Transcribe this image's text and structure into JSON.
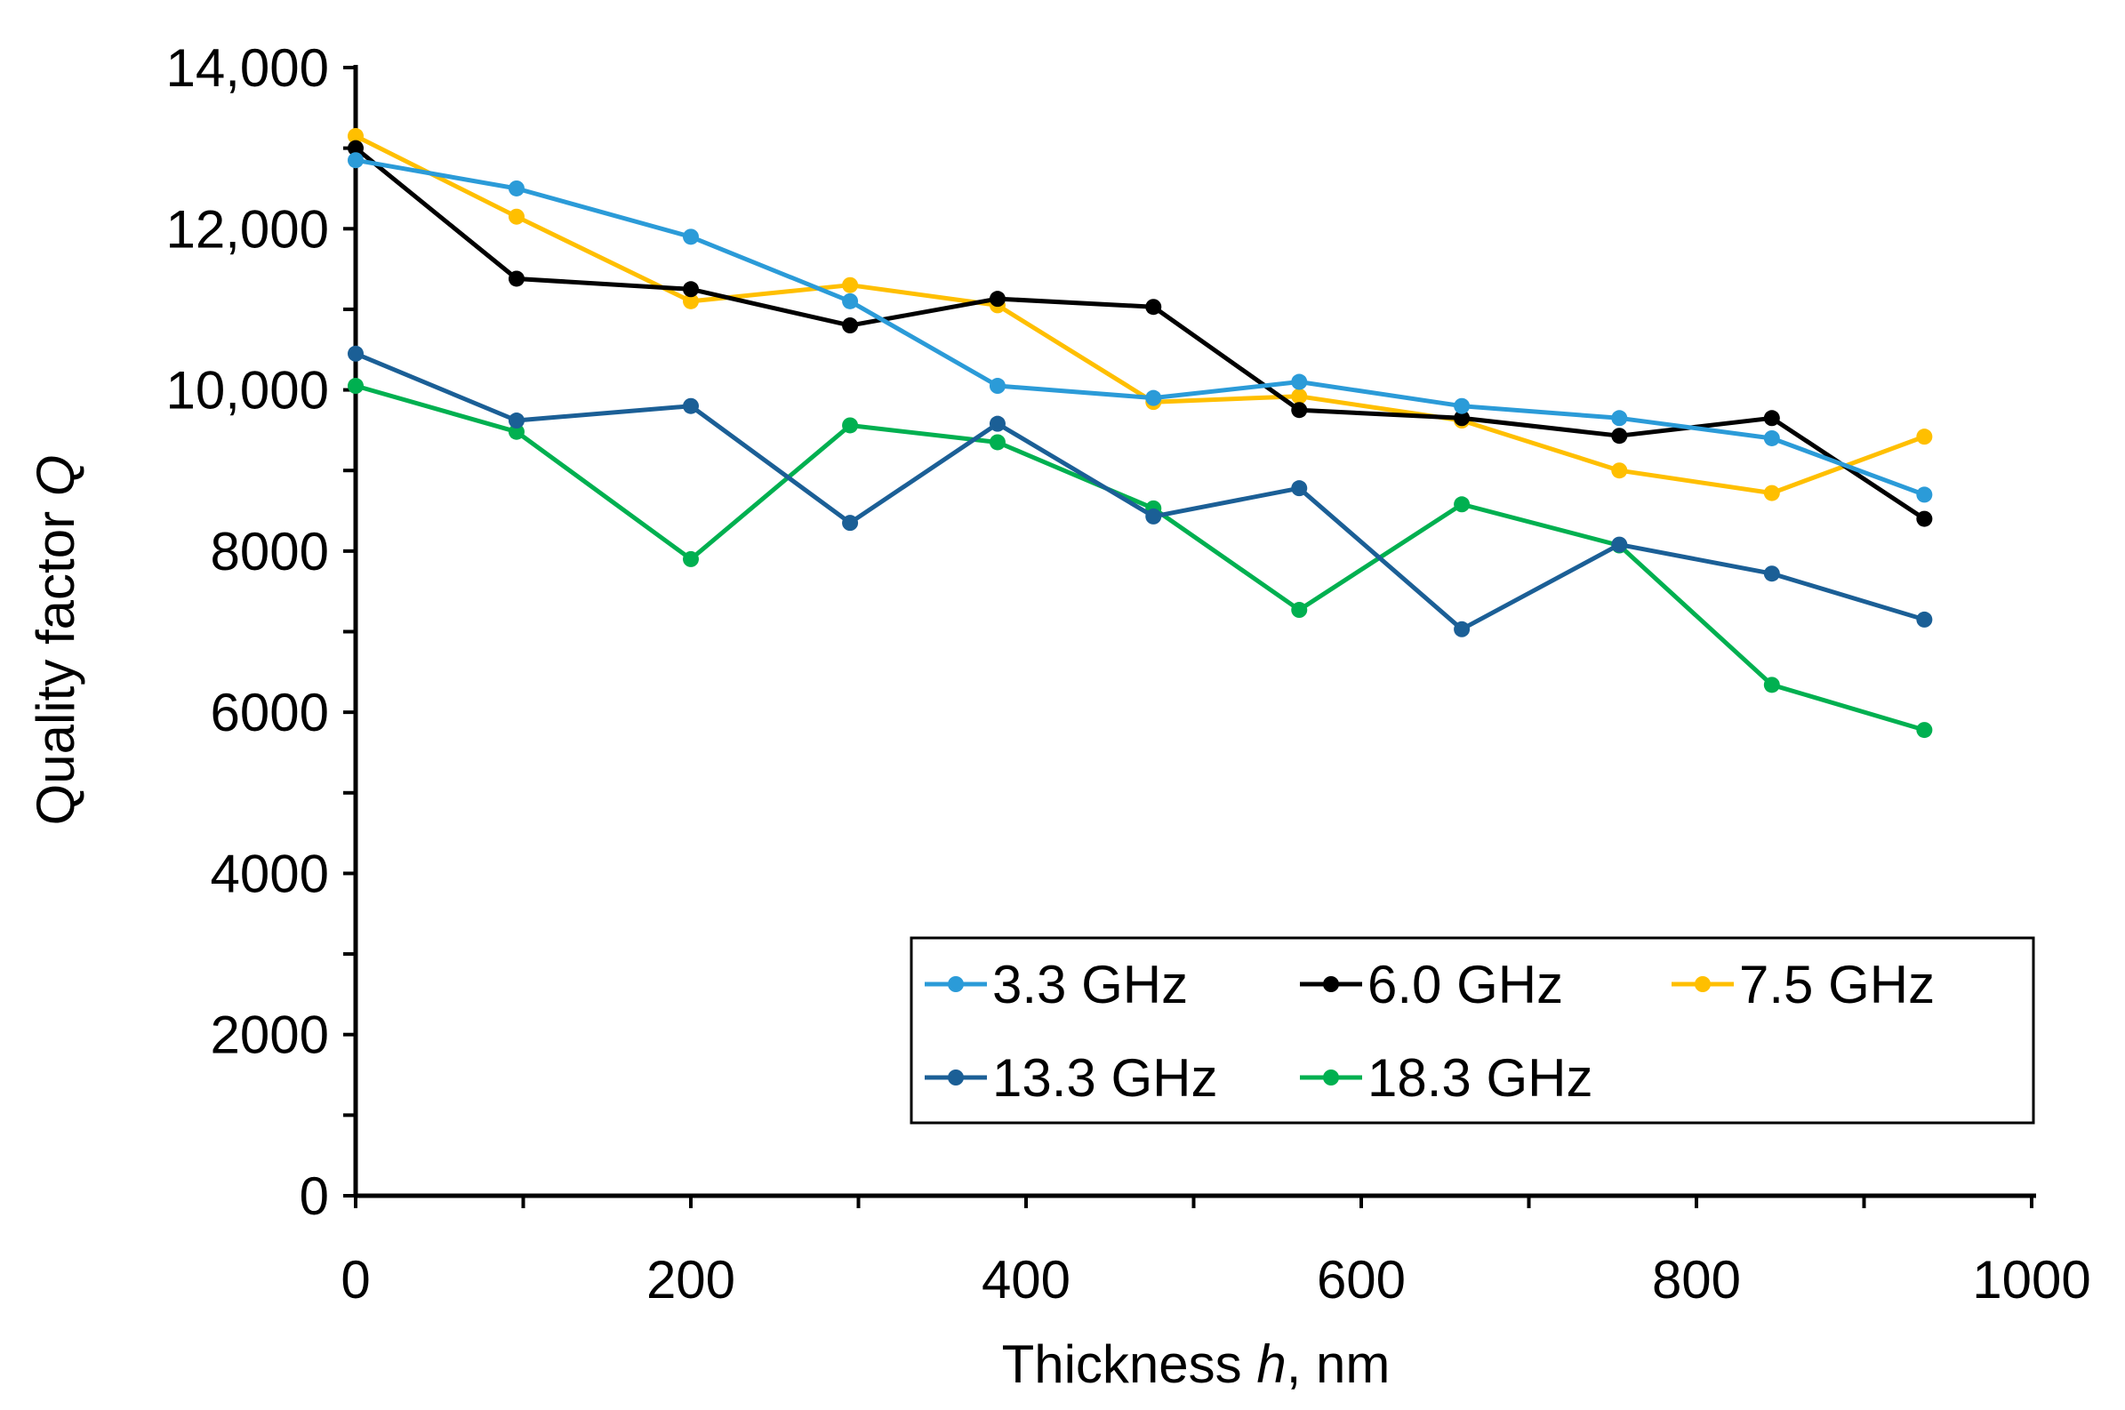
{
  "chart_data": {
    "type": "line",
    "title": "",
    "xlabel_main": "Thickness ",
    "xlabel_var": "h",
    "xlabel_unit": ", nm",
    "ylabel_main": "Quality factor ",
    "ylabel_var": "Q",
    "xlim": [
      0,
      1000
    ],
    "ylim": [
      0,
      14000
    ],
    "x_ticks": [
      0,
      200,
      400,
      600,
      800,
      1000
    ],
    "x_tick_labels": [
      "0",
      "200",
      "400",
      "600",
      "800",
      "1000"
    ],
    "y_ticks": [
      0,
      2000,
      4000,
      6000,
      8000,
      10000,
      12000,
      14000
    ],
    "y_tick_labels": [
      "0",
      "2000",
      "4000",
      "6000",
      "8000",
      "10,000",
      "12,000",
      "14,000"
    ],
    "grid": false,
    "legend_position": "bottom-right",
    "x": [
      0,
      96,
      200,
      295,
      383,
      476,
      563,
      660,
      754,
      845,
      936
    ],
    "series": [
      {
        "name": "3.3 GHz",
        "color": "#2B9BD8",
        "values": [
          12850,
          12500,
          11900,
          11100,
          10050,
          9900,
          10100,
          9800,
          9650,
          9400,
          8700
        ]
      },
      {
        "name": "6.0 GHz",
        "color": "#000000",
        "values": [
          13000,
          11380,
          11250,
          10800,
          11130,
          11030,
          9750,
          9650,
          9430,
          9650,
          8400
        ]
      },
      {
        "name": "7.5 GHz",
        "color": "#FFBF00",
        "values": [
          13150,
          12150,
          11100,
          11300,
          11050,
          9850,
          9920,
          9620,
          9000,
          8720,
          9420
        ]
      },
      {
        "name": "13.3 GHz",
        "color": "#1B5F96",
        "values": [
          10450,
          9620,
          9800,
          8350,
          9580,
          8430,
          8780,
          7030,
          8080,
          7720,
          7150
        ]
      },
      {
        "name": "18.3 GHz",
        "color": "#00B050",
        "values": [
          10050,
          9480,
          7900,
          9560,
          9350,
          8530,
          7270,
          8580,
          8070,
          6340,
          5780
        ]
      }
    ]
  }
}
